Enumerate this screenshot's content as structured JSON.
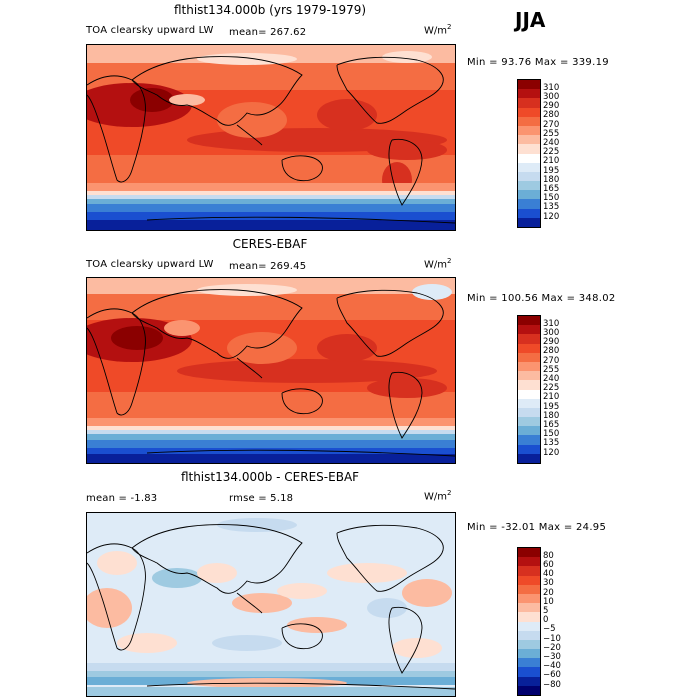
{
  "season": "JJA",
  "panels": [
    {
      "title": "flthist134.000b (yrs 1979-1979)",
      "field": "TOA clearsky upward LW",
      "stat_text": "mean= 267.62",
      "unit_base": "W/m",
      "unit_exp": "2",
      "minmax": "Min =  93.76 Max = 339.19",
      "colorbar": {
        "labels": [
          "310",
          "300",
          "290",
          "280",
          "270",
          "255",
          "240",
          "225",
          "210",
          "195",
          "180",
          "165",
          "150",
          "135",
          "120"
        ],
        "colors": [
          "#8b0000",
          "#b41010",
          "#d7301f",
          "#ef4a28",
          "#f46d43",
          "#fb9470",
          "#fcbba1",
          "#fee0d2",
          "#ffffff",
          "#deebf7",
          "#c6dbef",
          "#9ecae1",
          "#6baed6",
          "#3a7fd4",
          "#1a4fd0",
          "#08209a"
        ]
      }
    },
    {
      "title": "CERES-EBAF",
      "field": "TOA clearsky upward LW",
      "stat_text": "mean= 269.45",
      "unit_base": "W/m",
      "unit_exp": "2",
      "minmax": "Min = 100.56 Max = 348.02",
      "colorbar": {
        "labels": [
          "310",
          "300",
          "290",
          "280",
          "270",
          "255",
          "240",
          "225",
          "210",
          "195",
          "180",
          "165",
          "150",
          "135",
          "120"
        ],
        "colors": [
          "#8b0000",
          "#b41010",
          "#d7301f",
          "#ef4a28",
          "#f46d43",
          "#fb9470",
          "#fcbba1",
          "#fee0d2",
          "#ffffff",
          "#deebf7",
          "#c6dbef",
          "#9ecae1",
          "#6baed6",
          "#3a7fd4",
          "#1a4fd0",
          "#08209a"
        ]
      }
    },
    {
      "title": "flthist134.000b - CERES-EBAF",
      "mean_text": "mean =   -1.83",
      "rmse_text": "rmse =    5.18",
      "unit_base": "W/m",
      "unit_exp": "2",
      "minmax": "Min = -32.01 Max =  24.95",
      "colorbar": {
        "labels": [
          "80",
          "60",
          "40",
          "30",
          "20",
          "10",
          "5",
          "0",
          "−5",
          "−10",
          "−20",
          "−30",
          "−40",
          "−60",
          "−80"
        ],
        "colors": [
          "#8b0000",
          "#b41010",
          "#d7301f",
          "#ef4a28",
          "#f46d43",
          "#fb9470",
          "#fcbba1",
          "#fee0d2",
          "#deebf7",
          "#c6dbef",
          "#9ecae1",
          "#6baed6",
          "#3a7fd4",
          "#1a4fd0",
          "#08209a",
          "#00006e"
        ]
      }
    }
  ]
}
